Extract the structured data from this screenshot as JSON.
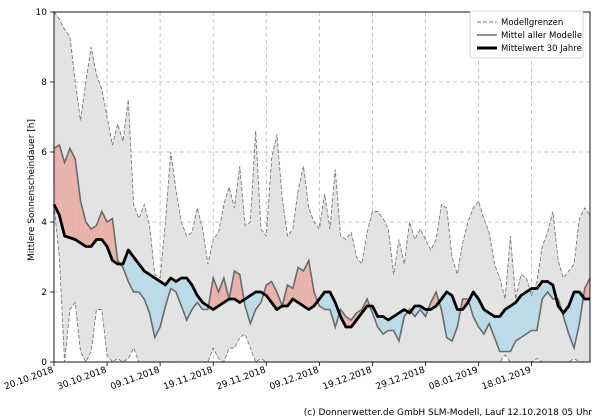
{
  "chart_data": {
    "type": "line",
    "title": "",
    "xlabel": "",
    "ylabel": "Mittlere Sonnenscheindauer [h]",
    "ylim": [
      0,
      10
    ],
    "yticks": [
      0,
      2,
      4,
      6,
      8,
      10
    ],
    "x_start_day": 0,
    "x_end_day": 101,
    "xticks": [
      {
        "day": 0,
        "label": "20.10.2018"
      },
      {
        "day": 10,
        "label": "30.10.2018"
      },
      {
        "day": 20,
        "label": "09.11.2018"
      },
      {
        "day": 30,
        "label": "19.11.2018"
      },
      {
        "day": 40,
        "label": "29.11.2018"
      },
      {
        "day": 50,
        "label": "09.12.2018"
      },
      {
        "day": 60,
        "label": "19.12.2018"
      },
      {
        "day": 70,
        "label": "29.12.2018"
      },
      {
        "day": 80,
        "label": "08.01.2019"
      },
      {
        "day": 90,
        "label": "18.01.2019"
      }
    ],
    "grid": true,
    "legend_position": "top-right",
    "series": [
      {
        "name": "Modellgrenzen (max)",
        "values": [
          10.0,
          9.8,
          9.5,
          9.3,
          8.0,
          6.9,
          8.0,
          9.0,
          8.2,
          7.8,
          7.0,
          6.2,
          6.8,
          6.3,
          7.5,
          4.5,
          4.1,
          4.5,
          3.9,
          2.5,
          2.4,
          4.0,
          6.0,
          4.9,
          4.0,
          3.6,
          3.7,
          4.4,
          3.8,
          2.8,
          3.5,
          3.7,
          4.5,
          5.0,
          4.4,
          5.6,
          3.9,
          4.0,
          6.6,
          3.8,
          3.6,
          5.8,
          6.5,
          4.7,
          3.6,
          3.8,
          4.9,
          5.6,
          4.4,
          4.0,
          3.8,
          4.8,
          3.8,
          5.5,
          3.6,
          3.5,
          3.7,
          3.0,
          2.8,
          3.7,
          4.3,
          4.3,
          4.1,
          3.8,
          2.5,
          3.5,
          2.8,
          4.0,
          3.5,
          3.8,
          3.5,
          3.2,
          3.5,
          4.5,
          4.4,
          3.0,
          2.5,
          3.4,
          4.0,
          4.4,
          4.6,
          4.1,
          3.7,
          2.8,
          2.4,
          1.8,
          3.6,
          1.8,
          2.5,
          2.4,
          1.9,
          2.3,
          3.3,
          3.7,
          4.3,
          2.9,
          2.4,
          2.6,
          2.8,
          4.1,
          4.4,
          4.2
        ]
      },
      {
        "name": "Modellgrenzen (min)",
        "values": [
          4.5,
          3.0,
          0.0,
          1.5,
          1.7,
          0.3,
          0.0,
          0.3,
          1.5,
          1.5,
          0.2,
          0.0,
          0.1,
          0.0,
          0.1,
          0.4,
          0.0,
          0.0,
          0.0,
          0.0,
          0.0,
          0.0,
          0.0,
          0.0,
          0.0,
          0.0,
          0.0,
          0.0,
          0.0,
          0.0,
          0.4,
          0.1,
          0.0,
          0.4,
          0.4,
          0.7,
          0.8,
          0.4,
          0.0,
          0.1,
          0.0,
          0.0,
          0.0,
          0.0,
          0.0,
          0.0,
          0.0,
          0.0,
          0.0,
          0.0,
          0.0,
          0.0,
          0.0,
          0.0,
          0.0,
          0.0,
          0.0,
          0.0,
          0.0,
          0.0,
          0.0,
          0.0,
          0.0,
          0.0,
          0.0,
          0.0,
          0.0,
          0.0,
          0.0,
          0.0,
          0.0,
          0.0,
          0.0,
          0.0,
          0.0,
          0.0,
          0.0,
          0.0,
          0.0,
          0.0,
          0.0,
          0.0,
          0.0,
          0.0,
          0.0,
          0.2,
          0.0,
          0.0,
          0.0,
          0.0,
          0.0,
          0.1,
          0.0,
          0.0,
          0.0,
          0.0,
          0.0,
          0.0,
          0.1,
          0.0,
          0.0,
          0.0
        ]
      },
      {
        "name": "Mittel aller Modelle",
        "values": [
          6.1,
          6.2,
          5.7,
          6.1,
          5.8,
          4.6,
          4.0,
          3.8,
          3.9,
          4.3,
          4.0,
          4.1,
          2.9,
          2.7,
          2.3,
          2.0,
          2.0,
          1.8,
          1.4,
          0.7,
          1.0,
          1.6,
          2.1,
          2.0,
          1.6,
          1.2,
          1.5,
          1.7,
          1.5,
          1.5,
          2.4,
          2.0,
          2.4,
          1.8,
          2.6,
          2.5,
          1.6,
          1.1,
          1.5,
          1.7,
          2.2,
          2.3,
          2.0,
          1.6,
          2.2,
          2.1,
          2.7,
          2.6,
          2.9,
          2.0,
          1.6,
          1.5,
          1.5,
          1.0,
          1.5,
          1.3,
          1.2,
          1.4,
          1.5,
          1.8,
          1.4,
          1.0,
          0.8,
          0.9,
          0.9,
          0.6,
          1.3,
          1.5,
          1.3,
          1.5,
          1.3,
          1.7,
          2.0,
          1.5,
          0.7,
          0.6,
          1.0,
          1.8,
          1.8,
          1.3,
          1.0,
          0.8,
          1.1,
          0.7,
          0.3,
          0.3,
          0.3,
          0.6,
          0.7,
          0.8,
          0.9,
          0.9,
          1.8,
          2.0,
          1.8,
          1.8,
          1.3,
          0.8,
          0.4,
          1.1,
          2.1,
          2.4
        ]
      },
      {
        "name": "Mittelwert 30 Jahre",
        "values": [
          4.5,
          4.2,
          3.6,
          3.55,
          3.5,
          3.4,
          3.3,
          3.3,
          3.5,
          3.5,
          3.3,
          2.9,
          2.8,
          2.8,
          3.2,
          3.0,
          2.8,
          2.6,
          2.5,
          2.4,
          2.3,
          2.2,
          2.4,
          2.3,
          2.4,
          2.4,
          2.2,
          1.9,
          1.7,
          1.6,
          1.5,
          1.6,
          1.7,
          1.8,
          1.8,
          1.7,
          1.8,
          1.9,
          2.0,
          2.0,
          1.9,
          1.7,
          1.5,
          1.6,
          1.6,
          1.8,
          1.7,
          1.6,
          1.5,
          1.6,
          1.8,
          2.0,
          2.0,
          1.7,
          1.3,
          1.0,
          1.0,
          1.2,
          1.4,
          1.6,
          1.6,
          1.3,
          1.3,
          1.2,
          1.3,
          1.4,
          1.5,
          1.4,
          1.6,
          1.6,
          1.5,
          1.5,
          1.6,
          1.8,
          2.0,
          1.9,
          1.5,
          1.5,
          1.7,
          2.0,
          1.8,
          1.5,
          1.4,
          1.3,
          1.3,
          1.5,
          1.6,
          1.7,
          1.9,
          2.0,
          2.1,
          2.1,
          2.3,
          2.3,
          2.2,
          1.6,
          1.4,
          1.6,
          2.0,
          2.0,
          1.8,
          1.8
        ]
      }
    ],
    "legend": [
      {
        "label": "Modellgrenzen",
        "style": "dashed"
      },
      {
        "label": "Mittel aller Modelle",
        "style": "thin"
      },
      {
        "label": "Mittelwert 30 Jahre",
        "style": "thick"
      }
    ],
    "colors": {
      "envelope_fill": "#e3e3e3",
      "envelope_line": "#7a7a7a",
      "above_fill": "#e8b3aa",
      "below_fill": "#bcdbe9",
      "mean_line": "#6b6b6b",
      "climate_line": "#000000",
      "grid": "#b8b8b8"
    }
  },
  "footer": {
    "credit": "(c) Donnerwetter.de GmbH SLM-Modell, Lauf 12.10.2018 05 Uhr"
  }
}
